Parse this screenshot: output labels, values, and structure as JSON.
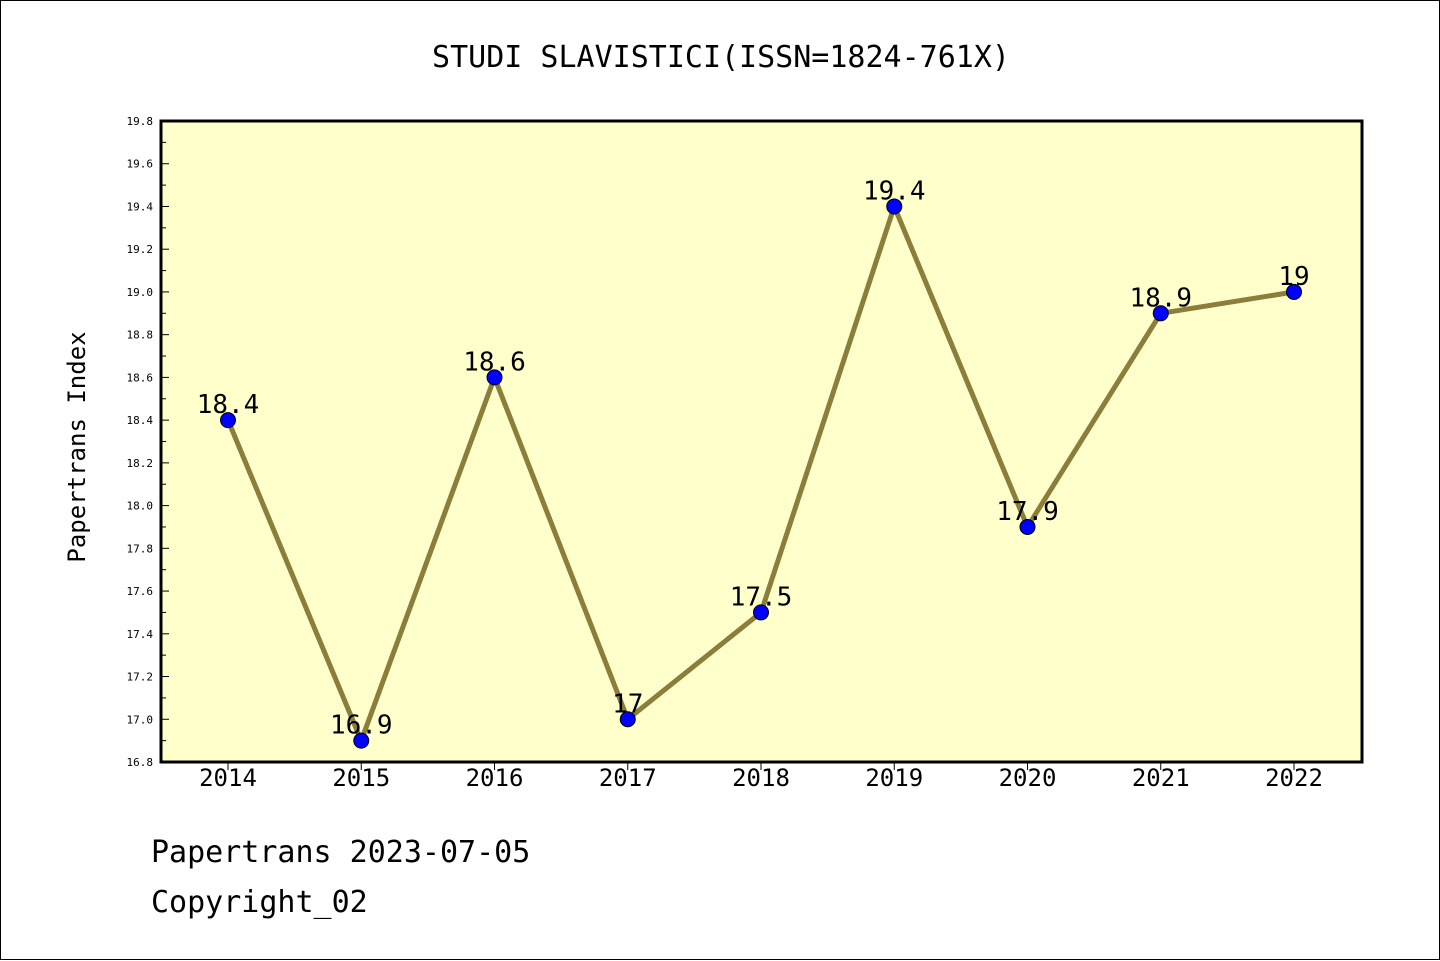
{
  "chart_data": {
    "type": "line",
    "title": "STUDI SLAVISTICI(ISSN=1824-761X)",
    "ylabel": "Papertrans Index",
    "xlabel": "",
    "categories": [
      "2014",
      "2015",
      "2016",
      "2017",
      "2018",
      "2019",
      "2020",
      "2021",
      "2022"
    ],
    "series": [
      {
        "values": [
          18.4,
          16.9,
          18.6,
          17.0,
          17.5,
          19.4,
          17.9,
          18.9,
          19.0
        ]
      }
    ],
    "data_labels": [
      "18.4",
      "16.9",
      "18.6",
      "17",
      "17.5",
      "19.4",
      "17.9",
      "18.9",
      "19"
    ],
    "ylim": [
      16.8,
      19.8
    ],
    "yticks": [
      "16.8",
      "17.0",
      "17.2",
      "17.4",
      "17.6",
      "17.8",
      "18.0",
      "18.2",
      "18.4",
      "18.6",
      "18.8",
      "19.0",
      "19.2",
      "19.4",
      "19.6",
      "19.8"
    ],
    "grid": false,
    "colors": {
      "plot_background": "#ffffcc",
      "line": "#8b7d3a",
      "marker": "#0000ff"
    }
  },
  "footer": {
    "source": "Papertrans 2023-07-05",
    "copyright": "Copyright_02"
  }
}
